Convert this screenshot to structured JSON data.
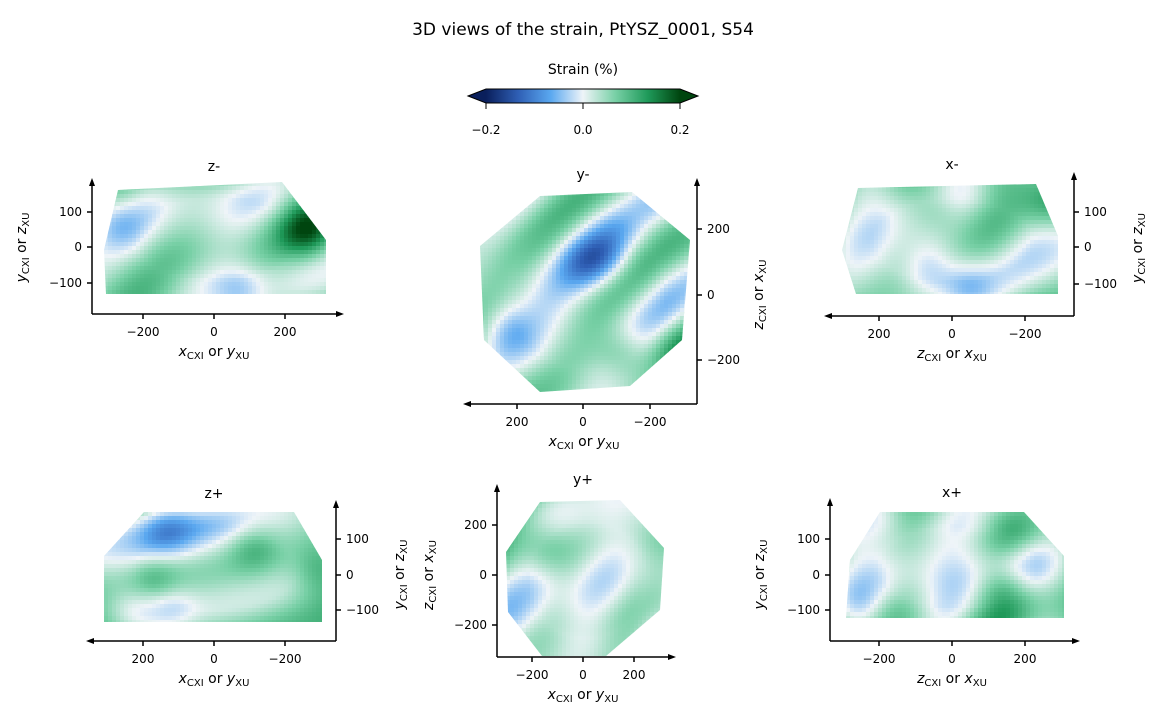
{
  "figure": {
    "title": "3D views of the strain, PtYSZ_0001, S54"
  },
  "colorbar": {
    "label": "Strain (%)",
    "ticks": [
      "−0.2",
      "0.0",
      "0.2"
    ],
    "range": [
      -0.2,
      0.2
    ],
    "extend": "both",
    "colors": [
      "#0a1f5c",
      "#2f5fb5",
      "#5aa8f0",
      "#eef4f8",
      "#78d0a6",
      "#1f9a5a",
      "#00450f"
    ]
  },
  "chart_data": [
    {
      "type": "heatmap",
      "title": "z-",
      "xlabel": {
        "a": "x",
        "as": "CXI",
        "b": "y",
        "bs": "XU"
      },
      "ylabel": {
        "a": "y",
        "as": "CXI",
        "b": "z",
        "bs": "XU"
      },
      "xticks": [
        "−200",
        "0",
        "200"
      ],
      "yticks": [
        "100",
        "0",
        "−100"
      ],
      "xlim": [
        -350,
        350
      ],
      "ylim": [
        -195,
        185
      ],
      "x_inverted": false,
      "yaxis_side": "left",
      "xarrow": "right",
      "value_range": [
        -0.2,
        0.2
      ]
    },
    {
      "type": "heatmap",
      "title": "y-",
      "xlabel": {
        "a": "x",
        "as": "CXI",
        "b": "y",
        "bs": "XU"
      },
      "ylabel": {
        "a": "z",
        "as": "CXI",
        "b": "x",
        "bs": "XU"
      },
      "xticks": [
        "200",
        "0",
        "−200"
      ],
      "yticks": [
        "200",
        "0",
        "−200"
      ],
      "xlim": [
        350,
        -350
      ],
      "ylim": [
        -330,
        350
      ],
      "x_inverted": true,
      "yaxis_side": "right",
      "xarrow": "left",
      "value_range": [
        -0.2,
        0.2
      ]
    },
    {
      "type": "heatmap",
      "title": "x-",
      "xlabel": {
        "a": "z",
        "as": "CXI",
        "b": "x",
        "bs": "XU"
      },
      "ylabel": {
        "a": "y",
        "as": "CXI",
        "b": "z",
        "bs": "XU"
      },
      "xticks": [
        "200",
        "0",
        "−200"
      ],
      "yticks": [
        "100",
        "0",
        "−100"
      ],
      "xlim": [
        350,
        -350
      ],
      "ylim": [
        -195,
        185
      ],
      "x_inverted": true,
      "yaxis_side": "right",
      "xarrow": "left",
      "value_range": [
        -0.2,
        0.2
      ]
    },
    {
      "type": "heatmap",
      "title": "z+",
      "xlabel": {
        "a": "x",
        "as": "CXI",
        "b": "y",
        "bs": "XU"
      },
      "ylabel": {
        "a": "y",
        "as": "CXI",
        "b": "z",
        "bs": "XU"
      },
      "xticks": [
        "200",
        "0",
        "−200"
      ],
      "yticks": [
        "100",
        "0",
        "−100"
      ],
      "xlim": [
        350,
        -350
      ],
      "ylim": [
        -195,
        185
      ],
      "x_inverted": true,
      "yaxis_side": "right",
      "xarrow": "left",
      "value_range": [
        -0.2,
        0.2
      ]
    },
    {
      "type": "heatmap",
      "title": "y+",
      "xlabel": {
        "a": "x",
        "as": "CXI",
        "b": "y",
        "bs": "XU"
      },
      "ylabel": {
        "a": "z",
        "as": "CXI",
        "b": "x",
        "bs": "XU"
      },
      "xticks": [
        "−200",
        "0",
        "200"
      ],
      "yticks": [
        "200",
        "0",
        "−200"
      ],
      "xlim": [
        -350,
        350
      ],
      "ylim": [
        -330,
        350
      ],
      "x_inverted": false,
      "yaxis_side": "left",
      "xarrow": "right",
      "value_range": [
        -0.2,
        0.2
      ]
    },
    {
      "type": "heatmap",
      "title": "x+",
      "xlabel": {
        "a": "z",
        "as": "CXI",
        "b": "x",
        "bs": "XU"
      },
      "ylabel": {
        "a": "y",
        "as": "CXI",
        "b": "z",
        "bs": "XU"
      },
      "xticks": [
        "−200",
        "0",
        "200"
      ],
      "yticks": [
        "100",
        "0",
        "−100"
      ],
      "xlim": [
        -350,
        350
      ],
      "ylim": [
        -195,
        185
      ],
      "x_inverted": false,
      "yaxis_side": "left",
      "xarrow": "right",
      "value_range": [
        -0.2,
        0.2
      ]
    }
  ]
}
